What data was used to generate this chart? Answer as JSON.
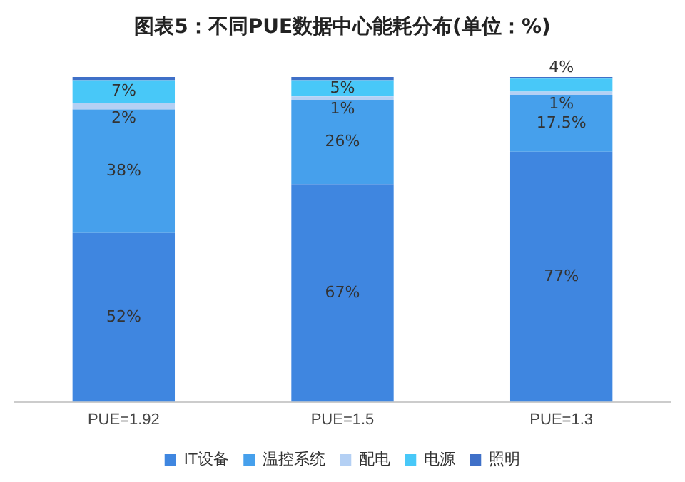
{
  "chart_data": {
    "type": "bar",
    "title": "图表5：不同PUE数据中心能耗分布(单位：%)",
    "categories": [
      "PUE=1.92",
      "PUE=1.5",
      "PUE=1.3"
    ],
    "stacked": true,
    "legend": "bottom",
    "grid": false,
    "series": [
      {
        "name": "IT设备",
        "color": "#3f86e0",
        "values": [
          52,
          67,
          77
        ],
        "value_labels": [
          "52%",
          "67%",
          "77%"
        ]
      },
      {
        "name": "温控系统",
        "color": "#46a0ec",
        "values": [
          38,
          26,
          17.5
        ],
        "value_labels": [
          "38%",
          "26%",
          "17.5%"
        ]
      },
      {
        "name": "配电",
        "color": "#b4d0f4",
        "values": [
          2,
          1,
          1
        ],
        "value_labels": [
          "2%",
          "1%",
          "1%"
        ]
      },
      {
        "name": "电源",
        "color": "#48c8f8",
        "values": [
          7,
          5,
          4
        ],
        "value_labels": [
          "7%",
          "5%",
          "4%"
        ]
      },
      {
        "name": "照明",
        "color": "#3f70c8",
        "values": [
          1,
          1,
          0.5
        ],
        "value_labels": [
          null,
          null,
          null
        ]
      }
    ]
  }
}
